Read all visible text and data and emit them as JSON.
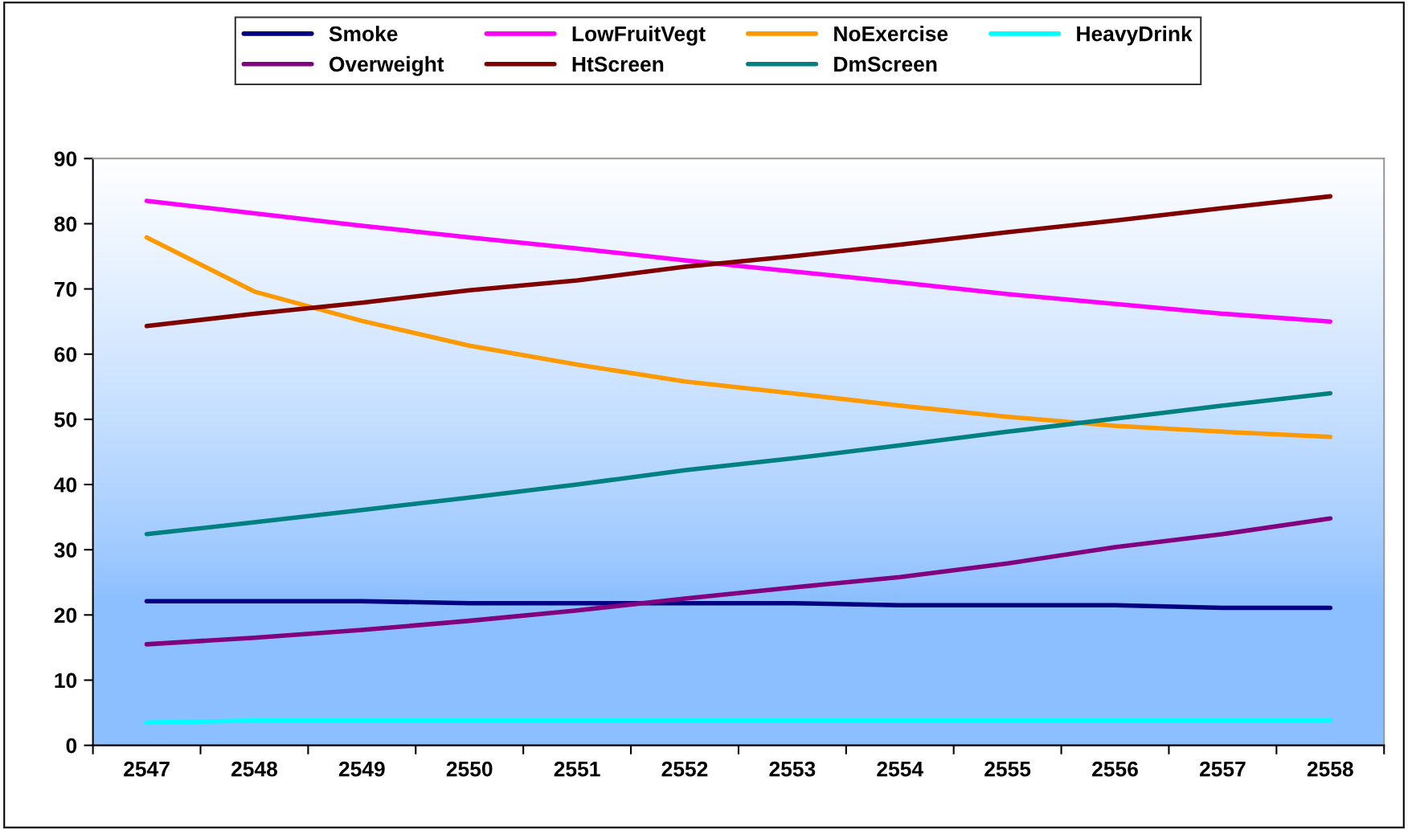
{
  "chart_data": {
    "type": "line",
    "categories": [
      "2547",
      "2548",
      "2549",
      "2550",
      "2551",
      "2552",
      "2553",
      "2554",
      "2555",
      "2556",
      "2557",
      "2558"
    ],
    "series": [
      {
        "name": "Smoke",
        "color": "#000080",
        "values": [
          22.1,
          22.1,
          22.1,
          21.8,
          21.8,
          21.8,
          21.8,
          21.5,
          21.5,
          21.5,
          21.1,
          21.1
        ]
      },
      {
        "name": "LowFruitVegt",
        "color": "#ff00ff",
        "values": [
          83.5,
          81.6,
          79.7,
          77.9,
          76.2,
          74.4,
          72.7,
          71.0,
          69.2,
          67.7,
          66.2,
          65.0
        ]
      },
      {
        "name": "NoExercise",
        "color": "#ff9900",
        "values": [
          77.9,
          69.6,
          65.1,
          61.3,
          58.4,
          55.8,
          54.0,
          52.1,
          50.4,
          49.0,
          48.1,
          47.3
        ]
      },
      {
        "name": "HeavyDrink",
        "color": "#00ffff",
        "values": [
          3.5,
          3.8,
          3.8,
          3.8,
          3.8,
          3.8,
          3.8,
          3.8,
          3.8,
          3.8,
          3.8,
          3.8
        ]
      },
      {
        "name": "Overweight",
        "color": "#800080",
        "values": [
          15.5,
          16.5,
          17.7,
          19.1,
          20.7,
          22.5,
          24.2,
          25.8,
          27.9,
          30.4,
          32.4,
          34.8
        ]
      },
      {
        "name": "HtScreen",
        "color": "#800000",
        "values": [
          64.3,
          66.2,
          67.9,
          69.8,
          71.3,
          73.4,
          75.0,
          76.8,
          78.7,
          80.5,
          82.4,
          84.2
        ]
      },
      {
        "name": "DmScreen",
        "color": "#008080",
        "values": [
          32.4,
          34.2,
          36.1,
          38.0,
          40.0,
          42.2,
          44.0,
          46.0,
          48.1,
          50.1,
          52.1,
          54.0
        ]
      }
    ],
    "ylim": [
      0,
      90
    ],
    "yticks": [
      0,
      10,
      20,
      30,
      40,
      50,
      60,
      70,
      80,
      90
    ],
    "grid": false,
    "legend": "top",
    "marker": "none",
    "line_style": "solid"
  }
}
